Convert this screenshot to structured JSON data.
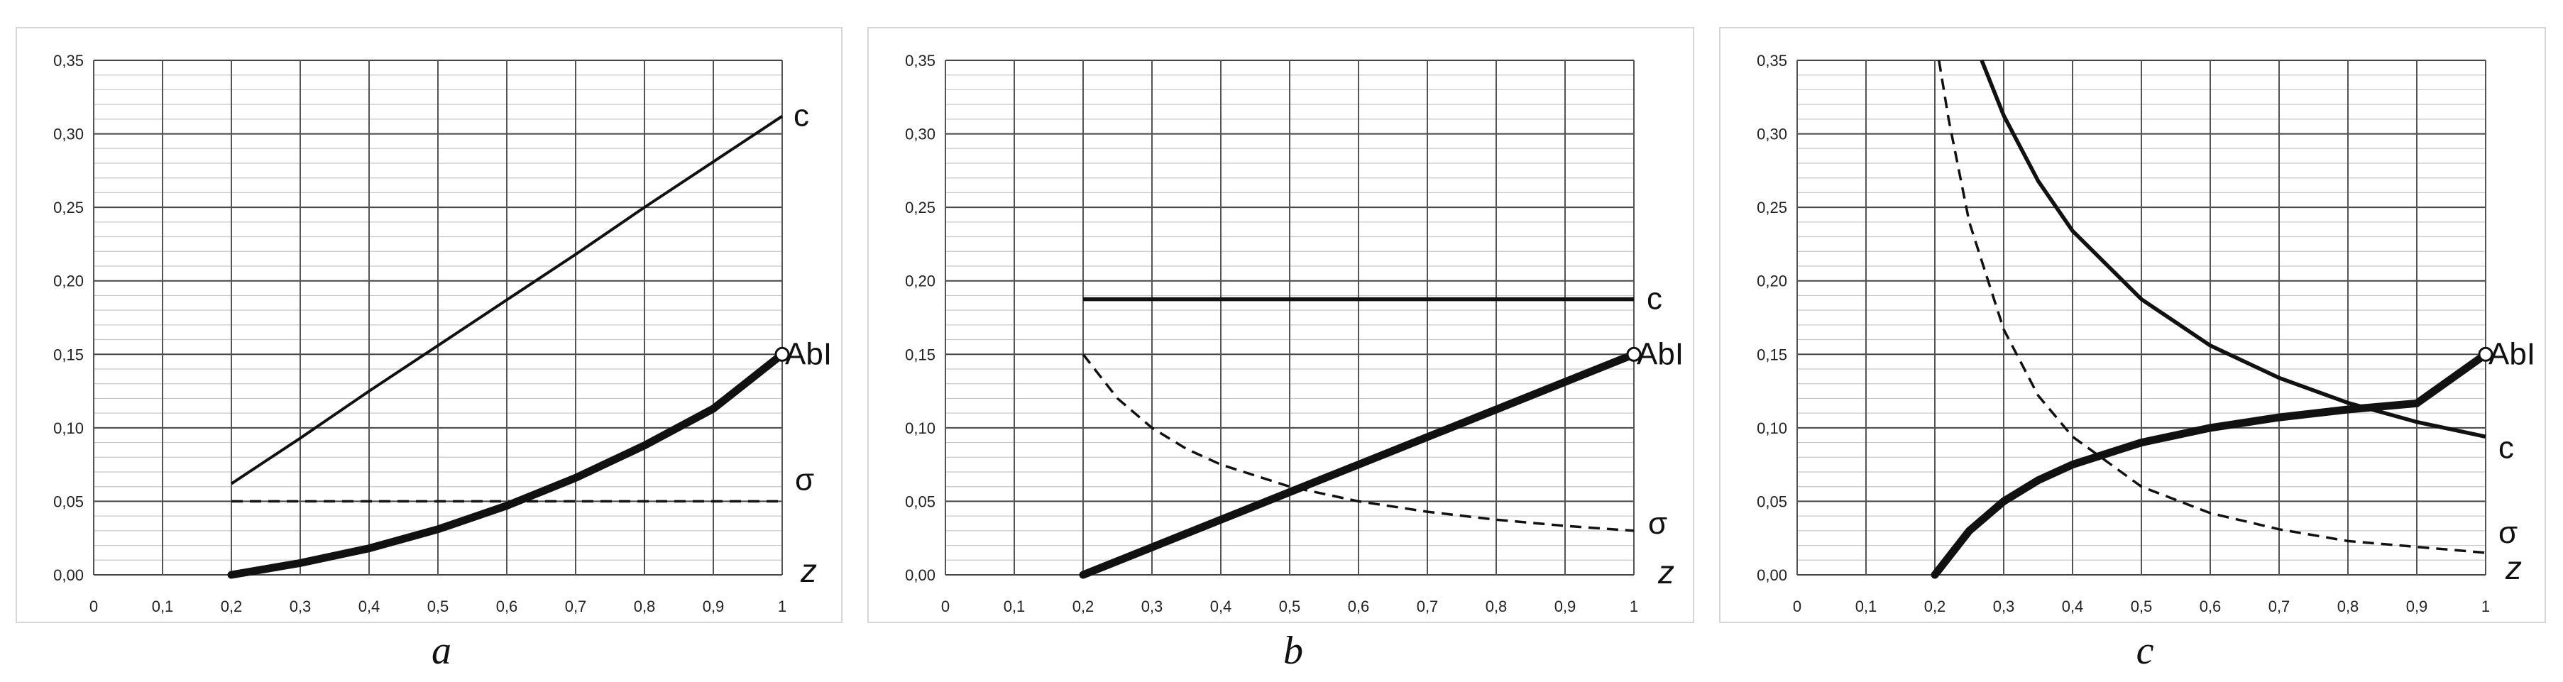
{
  "chart_data": [
    {
      "type": "line",
      "panel": "a",
      "xlim": [
        0,
        1
      ],
      "ylim": [
        0,
        0.35
      ],
      "x_ticks": [
        "0",
        "0,1",
        "0,2",
        "0,3",
        "0,4",
        "0,5",
        "0,6",
        "0,7",
        "0,8",
        "0,9",
        "1"
      ],
      "y_ticks": [
        "0,00",
        "0,05",
        "0,10",
        "0,15",
        "0,20",
        "0,25",
        "0,30",
        "0,35"
      ],
      "xlabel": "z",
      "grid": true,
      "series": [
        {
          "name": "c",
          "style": "thin",
          "x": [
            0.2,
            0.3,
            0.4,
            0.5,
            0.6,
            0.7,
            0.8,
            0.9,
            1.0
          ],
          "y": [
            0.062,
            0.093,
            0.125,
            0.156,
            0.187,
            0.218,
            0.25,
            0.281,
            0.312
          ]
        },
        {
          "name": "σ",
          "style": "dashed",
          "x": [
            0.2,
            1.0
          ],
          "y": [
            0.05,
            0.05
          ]
        },
        {
          "name": "AbI",
          "style": "thick",
          "x": [
            0.2,
            0.3,
            0.4,
            0.5,
            0.6,
            0.7,
            0.8,
            0.9,
            1.0
          ],
          "y": [
            0.0,
            0.008,
            0.018,
            0.031,
            0.047,
            0.066,
            0.088,
            0.113,
            0.15
          ]
        }
      ],
      "end_marker": {
        "x": 1.0,
        "y": 0.15
      }
    },
    {
      "type": "line",
      "panel": "b",
      "xlim": [
        0,
        1
      ],
      "ylim": [
        0,
        0.35
      ],
      "x_ticks": [
        "0",
        "0,1",
        "0,2",
        "0,3",
        "0,4",
        "0,5",
        "0,6",
        "0,7",
        "0,8",
        "0,9",
        "1"
      ],
      "y_ticks": [
        "0,00",
        "0,05",
        "0,10",
        "0,15",
        "0,20",
        "0,25",
        "0,30",
        "0,35"
      ],
      "xlabel": "z",
      "grid": true,
      "series": [
        {
          "name": "c",
          "style": "medium",
          "x": [
            0.2,
            1.0
          ],
          "y": [
            0.1875,
            0.1875
          ]
        },
        {
          "name": "σ",
          "style": "dashed",
          "x": [
            0.2,
            0.25,
            0.3,
            0.35,
            0.4,
            0.5,
            0.6,
            0.7,
            0.8,
            0.9,
            1.0
          ],
          "y": [
            0.15,
            0.12,
            0.1,
            0.0857,
            0.075,
            0.06,
            0.05,
            0.0429,
            0.0375,
            0.0333,
            0.03
          ]
        },
        {
          "name": "AbI",
          "style": "thick",
          "x": [
            0.2,
            1.0
          ],
          "y": [
            0.0,
            0.15
          ]
        }
      ],
      "end_marker": {
        "x": 1.0,
        "y": 0.15
      }
    },
    {
      "type": "line",
      "panel": "c",
      "xlim": [
        0,
        1
      ],
      "ylim": [
        0,
        0.35
      ],
      "x_ticks": [
        "0",
        "0,1",
        "0,2",
        "0,3",
        "0,4",
        "0,5",
        "0,6",
        "0,7",
        "0,8",
        "0,9",
        "1"
      ],
      "y_ticks": [
        "0,00",
        "0,05",
        "0,10",
        "0,15",
        "0,20",
        "0,25",
        "0,30",
        "0,35"
      ],
      "xlabel": "z",
      "grid": true,
      "series": [
        {
          "name": "c",
          "style": "medium",
          "x": [
            0.268,
            0.3,
            0.35,
            0.4,
            0.5,
            0.6,
            0.7,
            0.8,
            0.9,
            1.0
          ],
          "y": [
            0.35,
            0.3125,
            0.268,
            0.234,
            0.1875,
            0.156,
            0.134,
            0.117,
            0.104,
            0.094
          ]
        },
        {
          "name": "σ",
          "style": "dashed",
          "x": [
            0.206,
            0.22,
            0.25,
            0.3,
            0.35,
            0.4,
            0.5,
            0.6,
            0.7,
            0.8,
            0.9,
            1.0
          ],
          "y": [
            0.35,
            0.31,
            0.24,
            0.167,
            0.122,
            0.094,
            0.06,
            0.042,
            0.031,
            0.023,
            0.019,
            0.015
          ]
        },
        {
          "name": "AbI",
          "style": "thick",
          "x": [
            0.2,
            0.25,
            0.3,
            0.35,
            0.4,
            0.5,
            0.6,
            0.7,
            0.8,
            0.9,
            1.0
          ],
          "y": [
            0.0,
            0.03,
            0.05,
            0.0643,
            0.075,
            0.09,
            0.1,
            0.1071,
            0.1125,
            0.1167,
            0.15
          ]
        }
      ],
      "end_marker": {
        "x": 1.0,
        "y": 0.15
      }
    }
  ],
  "panel_labels": {
    "a": "a",
    "b": "b",
    "c": "c"
  }
}
